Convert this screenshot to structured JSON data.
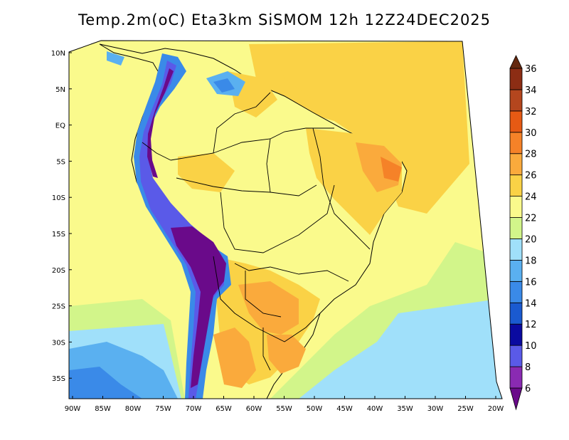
{
  "map": {
    "title": "Temp.2m(oC) Eta3km SiSMOM 12h 12Z24DEC2025",
    "variable": "Temp.2m",
    "units": "oC",
    "model": "Eta3km SiSMOM",
    "forecast_hour": "12h",
    "valid_time": "12Z24DEC2025",
    "lat_labels": [
      "10N",
      "5N",
      "EQ",
      "5S",
      "10S",
      "15S",
      "20S",
      "25S",
      "30S",
      "35S"
    ],
    "lon_labels": [
      "90W",
      "85W",
      "80W",
      "75W",
      "70W",
      "65W",
      "60W",
      "55W",
      "50W",
      "45W",
      "40W",
      "35W",
      "30W",
      "25W",
      "20W"
    ],
    "colorbar": {
      "labels": [
        "6",
        "8",
        "10",
        "12",
        "14",
        "16",
        "18",
        "20",
        "22",
        "24",
        "26",
        "28",
        "30",
        "32",
        "34",
        "36"
      ],
      "colors": [
        "#6a0a8a",
        "#8a2ab2",
        "#5a5ae8",
        "#0a0aa0",
        "#1a5ad0",
        "#3a8ae8",
        "#5ab0f0",
        "#a0e0fa",
        "#d2f58a",
        "#fafa8c",
        "#fad246",
        "#faaa3c",
        "#f58228",
        "#e65a14",
        "#b4461e",
        "#8c2d14",
        "#64280f"
      ]
    }
  }
}
